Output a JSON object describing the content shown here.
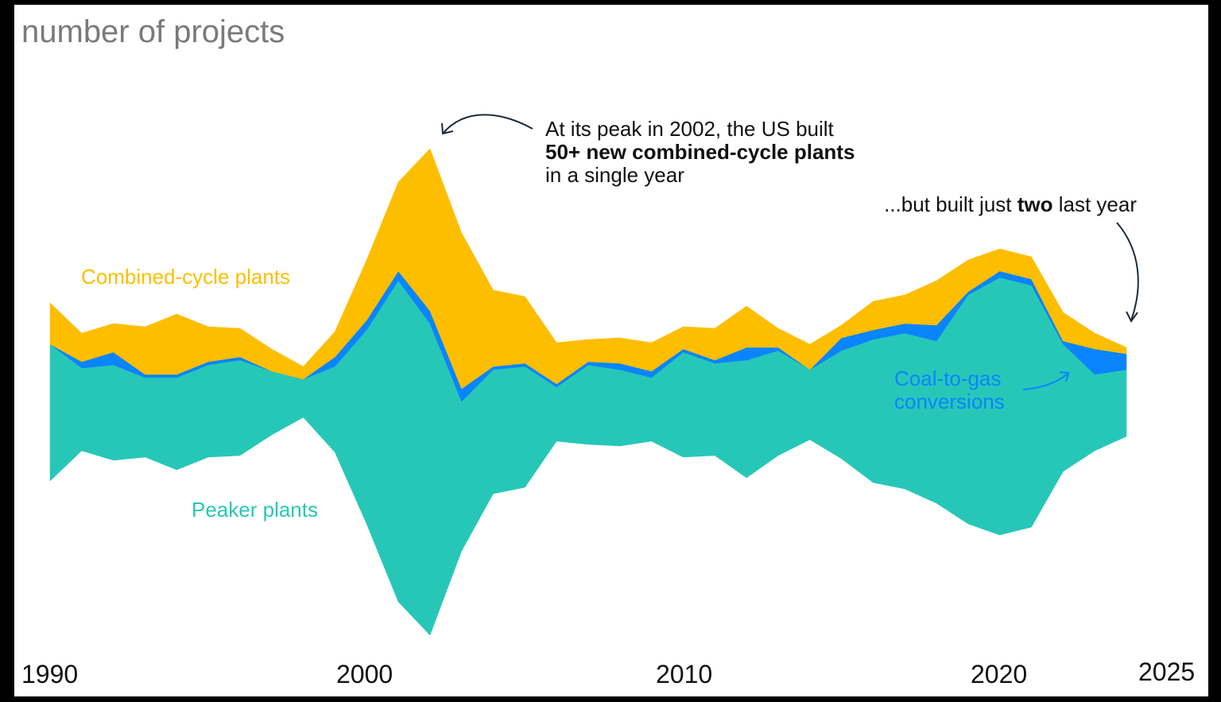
{
  "chart_data": {
    "type": "area",
    "subtype": "streamgraph",
    "title": "",
    "ylabel": "number of projects",
    "xlabel": "",
    "x_ticks": [
      "1990",
      "2000",
      "2010",
      "2020",
      "2025"
    ],
    "x": [
      1990,
      1991,
      1992,
      1993,
      1994,
      1995,
      1996,
      1997,
      1998,
      1999,
      2000,
      2001,
      2002,
      2003,
      2004,
      2005,
      2006,
      2007,
      2008,
      2009,
      2010,
      2011,
      2012,
      2013,
      2014,
      2015,
      2016,
      2017,
      2018,
      2019,
      2020,
      2021,
      2022,
      2023,
      2024
    ],
    "series": [
      {
        "name": "Peaker plants",
        "color": "#27C7B8",
        "values": [
          43,
          26,
          30,
          25,
          29,
          29,
          30,
          20,
          12,
          27,
          61,
          101,
          98,
          47,
          39,
          38,
          17,
          25,
          24,
          20,
          33,
          29,
          37,
          33,
          22,
          34,
          45,
          49,
          51,
          72,
          81,
          76,
          40,
          24,
          21
        ]
      },
      {
        "name": "Coal-to-gas conversions",
        "color": "#0A84FF",
        "values": [
          0,
          2,
          4,
          1,
          1,
          1,
          1,
          0,
          0,
          3,
          3,
          3,
          4,
          4,
          1,
          1,
          1,
          1,
          2,
          2,
          1,
          1,
          4,
          1,
          0,
          4,
          3,
          3,
          5,
          1,
          2,
          2,
          1,
          8,
          5
        ]
      },
      {
        "name": "Combined-cycle plants",
        "color": "#FDBE00",
        "values": [
          13,
          9,
          9,
          15,
          19,
          11,
          9,
          7,
          4,
          8,
          19,
          28,
          51,
          49,
          24,
          21,
          13,
          7,
          8,
          9,
          7,
          10,
          13,
          6,
          8,
          4,
          9,
          9,
          14,
          10,
          7,
          7,
          9,
          5,
          2
        ]
      }
    ],
    "annotations": {
      "peak": {
        "line1": "At its peak in 2002, the US built",
        "line2": "50+ new combined-cycle plants",
        "line3": "in a single year"
      },
      "last": {
        "pre": "...but built just ",
        "bold": "two",
        "post": " last year"
      }
    }
  }
}
